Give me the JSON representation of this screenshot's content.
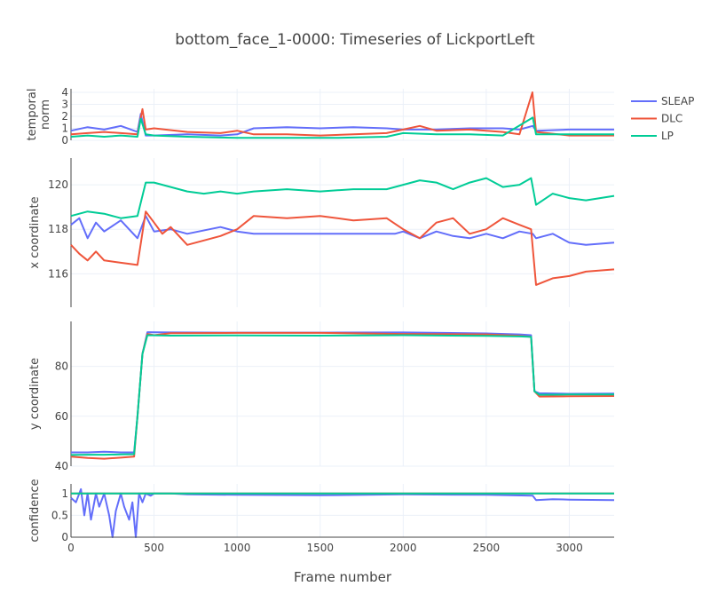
{
  "chart_data": {
    "type": "line",
    "title": "bottom_face_1-0000: Timeseries of LickportLeft",
    "xlabel": "Frame number",
    "xlim": [
      0,
      3270
    ],
    "x_ticks": [
      0,
      500,
      1000,
      1500,
      2000,
      2500,
      3000
    ],
    "x_tick_labels": [
      "0",
      "500",
      "1000",
      "1500",
      "2000",
      "2500",
      "3000"
    ],
    "legend": {
      "placement": "top-right",
      "entries": [
        "SLEAP",
        "DLC",
        "LP"
      ]
    },
    "colors": {
      "SLEAP": "#636efa",
      "DLC": "#ef553b",
      "LP": "#00cc96"
    },
    "grid": true,
    "panels": [
      {
        "key": "temporal_norm",
        "ylabel": [
          "temporal",
          "norm"
        ],
        "ylim": [
          0,
          4.3
        ],
        "y_ticks": [
          0,
          1,
          2,
          3,
          4
        ],
        "y_tick_labels": [
          "0",
          "1",
          "2",
          "3",
          "4"
        ],
        "series": [
          {
            "name": "SLEAP",
            "x": [
              0,
              100,
              200,
              300,
              400,
              420,
              450,
              500,
              700,
              900,
              1000,
              1100,
              1300,
              1500,
              1700,
              1900,
              2000,
              2200,
              2400,
              2600,
              2700,
              2780,
              2800,
              3000,
              3270
            ],
            "y": [
              0.8,
              1.1,
              0.9,
              1.2,
              0.7,
              2.2,
              0.4,
              0.4,
              0.5,
              0.4,
              0.5,
              1.0,
              1.1,
              1.0,
              1.1,
              1.0,
              0.9,
              0.9,
              1.0,
              1.0,
              0.9,
              1.2,
              0.8,
              0.9,
              0.9
            ]
          },
          {
            "name": "DLC",
            "x": [
              0,
              100,
              200,
              300,
              400,
              430,
              450,
              500,
              700,
              900,
              1000,
              1100,
              1300,
              1500,
              1700,
              1900,
              2000,
              2100,
              2200,
              2400,
              2600,
              2700,
              2778,
              2800,
              3000,
              3270
            ],
            "y": [
              0.5,
              0.6,
              0.7,
              0.6,
              0.5,
              2.6,
              0.9,
              1.0,
              0.7,
              0.6,
              0.8,
              0.5,
              0.5,
              0.4,
              0.5,
              0.6,
              0.9,
              1.2,
              0.8,
              0.9,
              0.7,
              0.5,
              4.0,
              0.7,
              0.4,
              0.4
            ]
          },
          {
            "name": "LP",
            "x": [
              0,
              100,
              200,
              300,
              400,
              420,
              450,
              500,
              700,
              1000,
              1300,
              1600,
              1900,
              2000,
              2200,
              2400,
              2600,
              2780,
              2800,
              3000,
              3270
            ],
            "y": [
              0.3,
              0.4,
              0.3,
              0.4,
              0.3,
              1.8,
              0.5,
              0.4,
              0.3,
              0.2,
              0.2,
              0.2,
              0.3,
              0.6,
              0.5,
              0.5,
              0.4,
              1.9,
              0.5,
              0.5,
              0.5
            ]
          }
        ]
      },
      {
        "key": "x_coordinate",
        "ylabel": [
          "x coordinate"
        ],
        "ylim": [
          114.5,
          121.2
        ],
        "y_ticks": [
          116,
          118,
          120
        ],
        "y_tick_labels": [
          "116",
          "118",
          "120"
        ],
        "series": [
          {
            "name": "SLEAP",
            "x": [
              0,
              50,
              100,
              150,
              200,
              300,
              400,
              450,
              500,
              600,
              700,
              900,
              1000,
              1100,
              1200,
              1500,
              1800,
              1950,
              2000,
              2100,
              2200,
              2300,
              2400,
              2500,
              2600,
              2700,
              2780,
              2800,
              2900,
              3000,
              3100,
              3270
            ],
            "y": [
              118.2,
              118.5,
              117.6,
              118.3,
              117.9,
              118.4,
              117.6,
              118.6,
              117.9,
              118.0,
              117.8,
              118.1,
              117.9,
              117.8,
              117.8,
              117.8,
              117.8,
              117.8,
              117.9,
              117.6,
              117.9,
              117.7,
              117.6,
              117.8,
              117.6,
              117.9,
              117.8,
              117.6,
              117.8,
              117.4,
              117.3,
              117.4
            ]
          },
          {
            "name": "DLC",
            "x": [
              0,
              50,
              100,
              150,
              200,
              300,
              400,
              450,
              500,
              550,
              600,
              700,
              800,
              900,
              1000,
              1100,
              1300,
              1500,
              1700,
              1900,
              2000,
              2100,
              2200,
              2300,
              2400,
              2500,
              2600,
              2700,
              2770,
              2800,
              2900,
              3000,
              3100,
              3270
            ],
            "y": [
              117.3,
              116.9,
              116.6,
              117.0,
              116.6,
              116.5,
              116.4,
              118.8,
              118.3,
              117.8,
              118.1,
              117.3,
              117.5,
              117.7,
              118.0,
              118.6,
              118.5,
              118.6,
              118.4,
              118.5,
              118.0,
              117.6,
              118.3,
              118.5,
              117.8,
              118.0,
              118.5,
              118.2,
              118.0,
              115.5,
              115.8,
              115.9,
              116.1,
              116.2
            ]
          },
          {
            "name": "LP",
            "x": [
              0,
              50,
              100,
              200,
              300,
              400,
              450,
              500,
              600,
              700,
              800,
              900,
              1000,
              1100,
              1300,
              1500,
              1700,
              1900,
              2000,
              2100,
              2200,
              2300,
              2400,
              2500,
              2600,
              2700,
              2770,
              2800,
              2900,
              3000,
              3100,
              3270
            ],
            "y": [
              118.6,
              118.7,
              118.8,
              118.7,
              118.5,
              118.6,
              120.1,
              120.1,
              119.9,
              119.7,
              119.6,
              119.7,
              119.6,
              119.7,
              119.8,
              119.7,
              119.8,
              119.8,
              120.0,
              120.2,
              120.1,
              119.8,
              120.1,
              120.3,
              119.9,
              120.0,
              120.3,
              119.1,
              119.6,
              119.4,
              119.3,
              119.5
            ]
          }
        ]
      },
      {
        "key": "y_coordinate",
        "ylabel": [
          "y coordinate"
        ],
        "ylim": [
          40,
          98
        ],
        "y_ticks": [
          40,
          60,
          80
        ],
        "y_tick_labels": [
          "40",
          "60",
          "80"
        ],
        "series": [
          {
            "name": "SLEAP",
            "x": [
              0,
              100,
              200,
              300,
              380,
              400,
              430,
              460,
              600,
              1000,
              1500,
              2000,
              2500,
              2700,
              2770,
              2790,
              2820,
              3000,
              3270
            ],
            "y": [
              45.5,
              45.5,
              45.8,
              45.5,
              45.5,
              60,
              85,
              93.7,
              93.6,
              93.5,
              93.5,
              93.6,
              93.2,
              92.8,
              92.5,
              70,
              69.2,
              69.0,
              69.1
            ]
          },
          {
            "name": "DLC",
            "x": [
              0,
              100,
              200,
              300,
              380,
              400,
              430,
              460,
              500,
              600,
              1000,
              1500,
              2000,
              2500,
              2700,
              2770,
              2790,
              2820,
              3000,
              3270
            ],
            "y": [
              43.8,
              43.3,
              43.0,
              43.4,
              43.8,
              60,
              85,
              93.0,
              92.5,
              93.3,
              93.4,
              93.4,
              93.0,
              92.8,
              92.2,
              91.8,
              70,
              67.9,
              68.0,
              68.1
            ]
          },
          {
            "name": "LP",
            "x": [
              0,
              100,
              200,
              300,
              380,
              400,
              430,
              460,
              600,
              1000,
              1500,
              2000,
              2500,
              2700,
              2770,
              2790,
              2820,
              3000,
              3270
            ],
            "y": [
              44.5,
              44.6,
              44.6,
              44.7,
              44.8,
              60,
              85,
              92.5,
              92.3,
              92.4,
              92.3,
              92.5,
              92.2,
              92.0,
              91.8,
              70,
              68.6,
              68.7,
              68.7
            ]
          }
        ]
      },
      {
        "key": "confidence",
        "ylabel": [
          "confidence"
        ],
        "ylim": [
          0,
          1.22
        ],
        "y_ticks": [
          0,
          0.5,
          1
        ],
        "y_tick_labels": [
          "0",
          "0.5",
          "1"
        ],
        "series": [
          {
            "name": "SLEAP",
            "x": [
              0,
              30,
              60,
              80,
              100,
              120,
              150,
              170,
              200,
              230,
              250,
              270,
              300,
              320,
              350,
              370,
              390,
              410,
              430,
              450,
              480,
              500,
              600,
              700,
              1000,
              1500,
              2000,
              2500,
              2780,
              2800,
              2900,
              3000,
              3270
            ],
            "y": [
              0.9,
              0.8,
              1.1,
              0.5,
              1.0,
              0.4,
              1.0,
              0.7,
              1.0,
              0.5,
              0.0,
              0.6,
              1.0,
              0.7,
              0.4,
              0.8,
              0.0,
              1.0,
              0.8,
              1.0,
              0.95,
              1.0,
              1.0,
              0.98,
              0.97,
              0.96,
              0.98,
              0.97,
              0.95,
              0.85,
              0.87,
              0.86,
              0.85
            ]
          },
          {
            "name": "DLC",
            "x": [
              0,
              3270
            ],
            "y": [
              1.0,
              1.0
            ]
          },
          {
            "name": "LP",
            "x": [
              0,
              3270
            ],
            "y": [
              1.0,
              1.0
            ]
          }
        ]
      }
    ]
  }
}
